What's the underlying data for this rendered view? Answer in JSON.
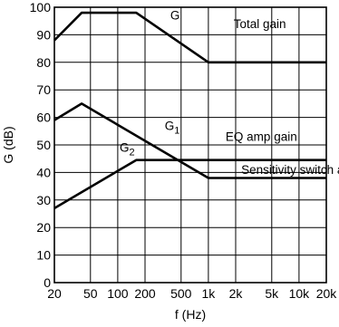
{
  "chart_data": {
    "type": "line",
    "title": "",
    "xlabel": "f (Hz)",
    "ylabel": "G (dB)",
    "x_scale": "log",
    "xlim": [
      20,
      20000
    ],
    "ylim": [
      0,
      100
    ],
    "grid": true,
    "x_ticks": [
      {
        "value": 20,
        "label": "20"
      },
      {
        "value": 50,
        "label": "50"
      },
      {
        "value": 100,
        "label": "100"
      },
      {
        "value": 200,
        "label": "200"
      },
      {
        "value": 500,
        "label": "500"
      },
      {
        "value": 1000,
        "label": "1k"
      },
      {
        "value": 2000,
        "label": "2k"
      },
      {
        "value": 5000,
        "label": "5k"
      },
      {
        "value": 10000,
        "label": "10k"
      },
      {
        "value": 20000,
        "label": "20k"
      }
    ],
    "y_ticks": [
      {
        "value": 0,
        "label": "0"
      },
      {
        "value": 10,
        "label": "10"
      },
      {
        "value": 20,
        "label": "20"
      },
      {
        "value": 30,
        "label": "30"
      },
      {
        "value": 40,
        "label": "40"
      },
      {
        "value": 50,
        "label": "50"
      },
      {
        "value": 60,
        "label": "60"
      },
      {
        "value": 70,
        "label": "70"
      },
      {
        "value": 80,
        "label": "80"
      },
      {
        "value": 90,
        "label": "90"
      },
      {
        "value": 100,
        "label": "100"
      }
    ],
    "series": [
      {
        "key": "total",
        "points": [
          [
            20,
            88
          ],
          [
            40,
            98
          ],
          [
            160,
            98
          ],
          [
            1000,
            80
          ],
          [
            20000,
            80
          ]
        ]
      },
      {
        "key": "eq",
        "points": [
          [
            20,
            59
          ],
          [
            40,
            65
          ],
          [
            1000,
            38
          ],
          [
            20000,
            38
          ]
        ]
      },
      {
        "key": "sensitivity",
        "points": [
          [
            20,
            27
          ],
          [
            160,
            44.5
          ],
          [
            20000,
            44.5
          ]
        ]
      }
    ],
    "annotations": [
      {
        "key": "g",
        "text": "G",
        "x": 380,
        "y": 95.5
      },
      {
        "key": "total-gain",
        "text": "Total gain",
        "x": 1900,
        "y": 92.5
      },
      {
        "key": "g1-main",
        "text": "G",
        "x": 330,
        "y": 55.5,
        "sub": "1"
      },
      {
        "key": "eq-amp-gain",
        "text": "EQ amp gain",
        "x": 1550,
        "y": 51.5
      },
      {
        "key": "g2-main",
        "text": "G",
        "x": 105,
        "y": 47.5,
        "sub": "2"
      },
      {
        "key": "sensitivity-switch",
        "text": "Sensitivity switch amp gain",
        "x": 2300,
        "y": 39.5
      }
    ]
  }
}
